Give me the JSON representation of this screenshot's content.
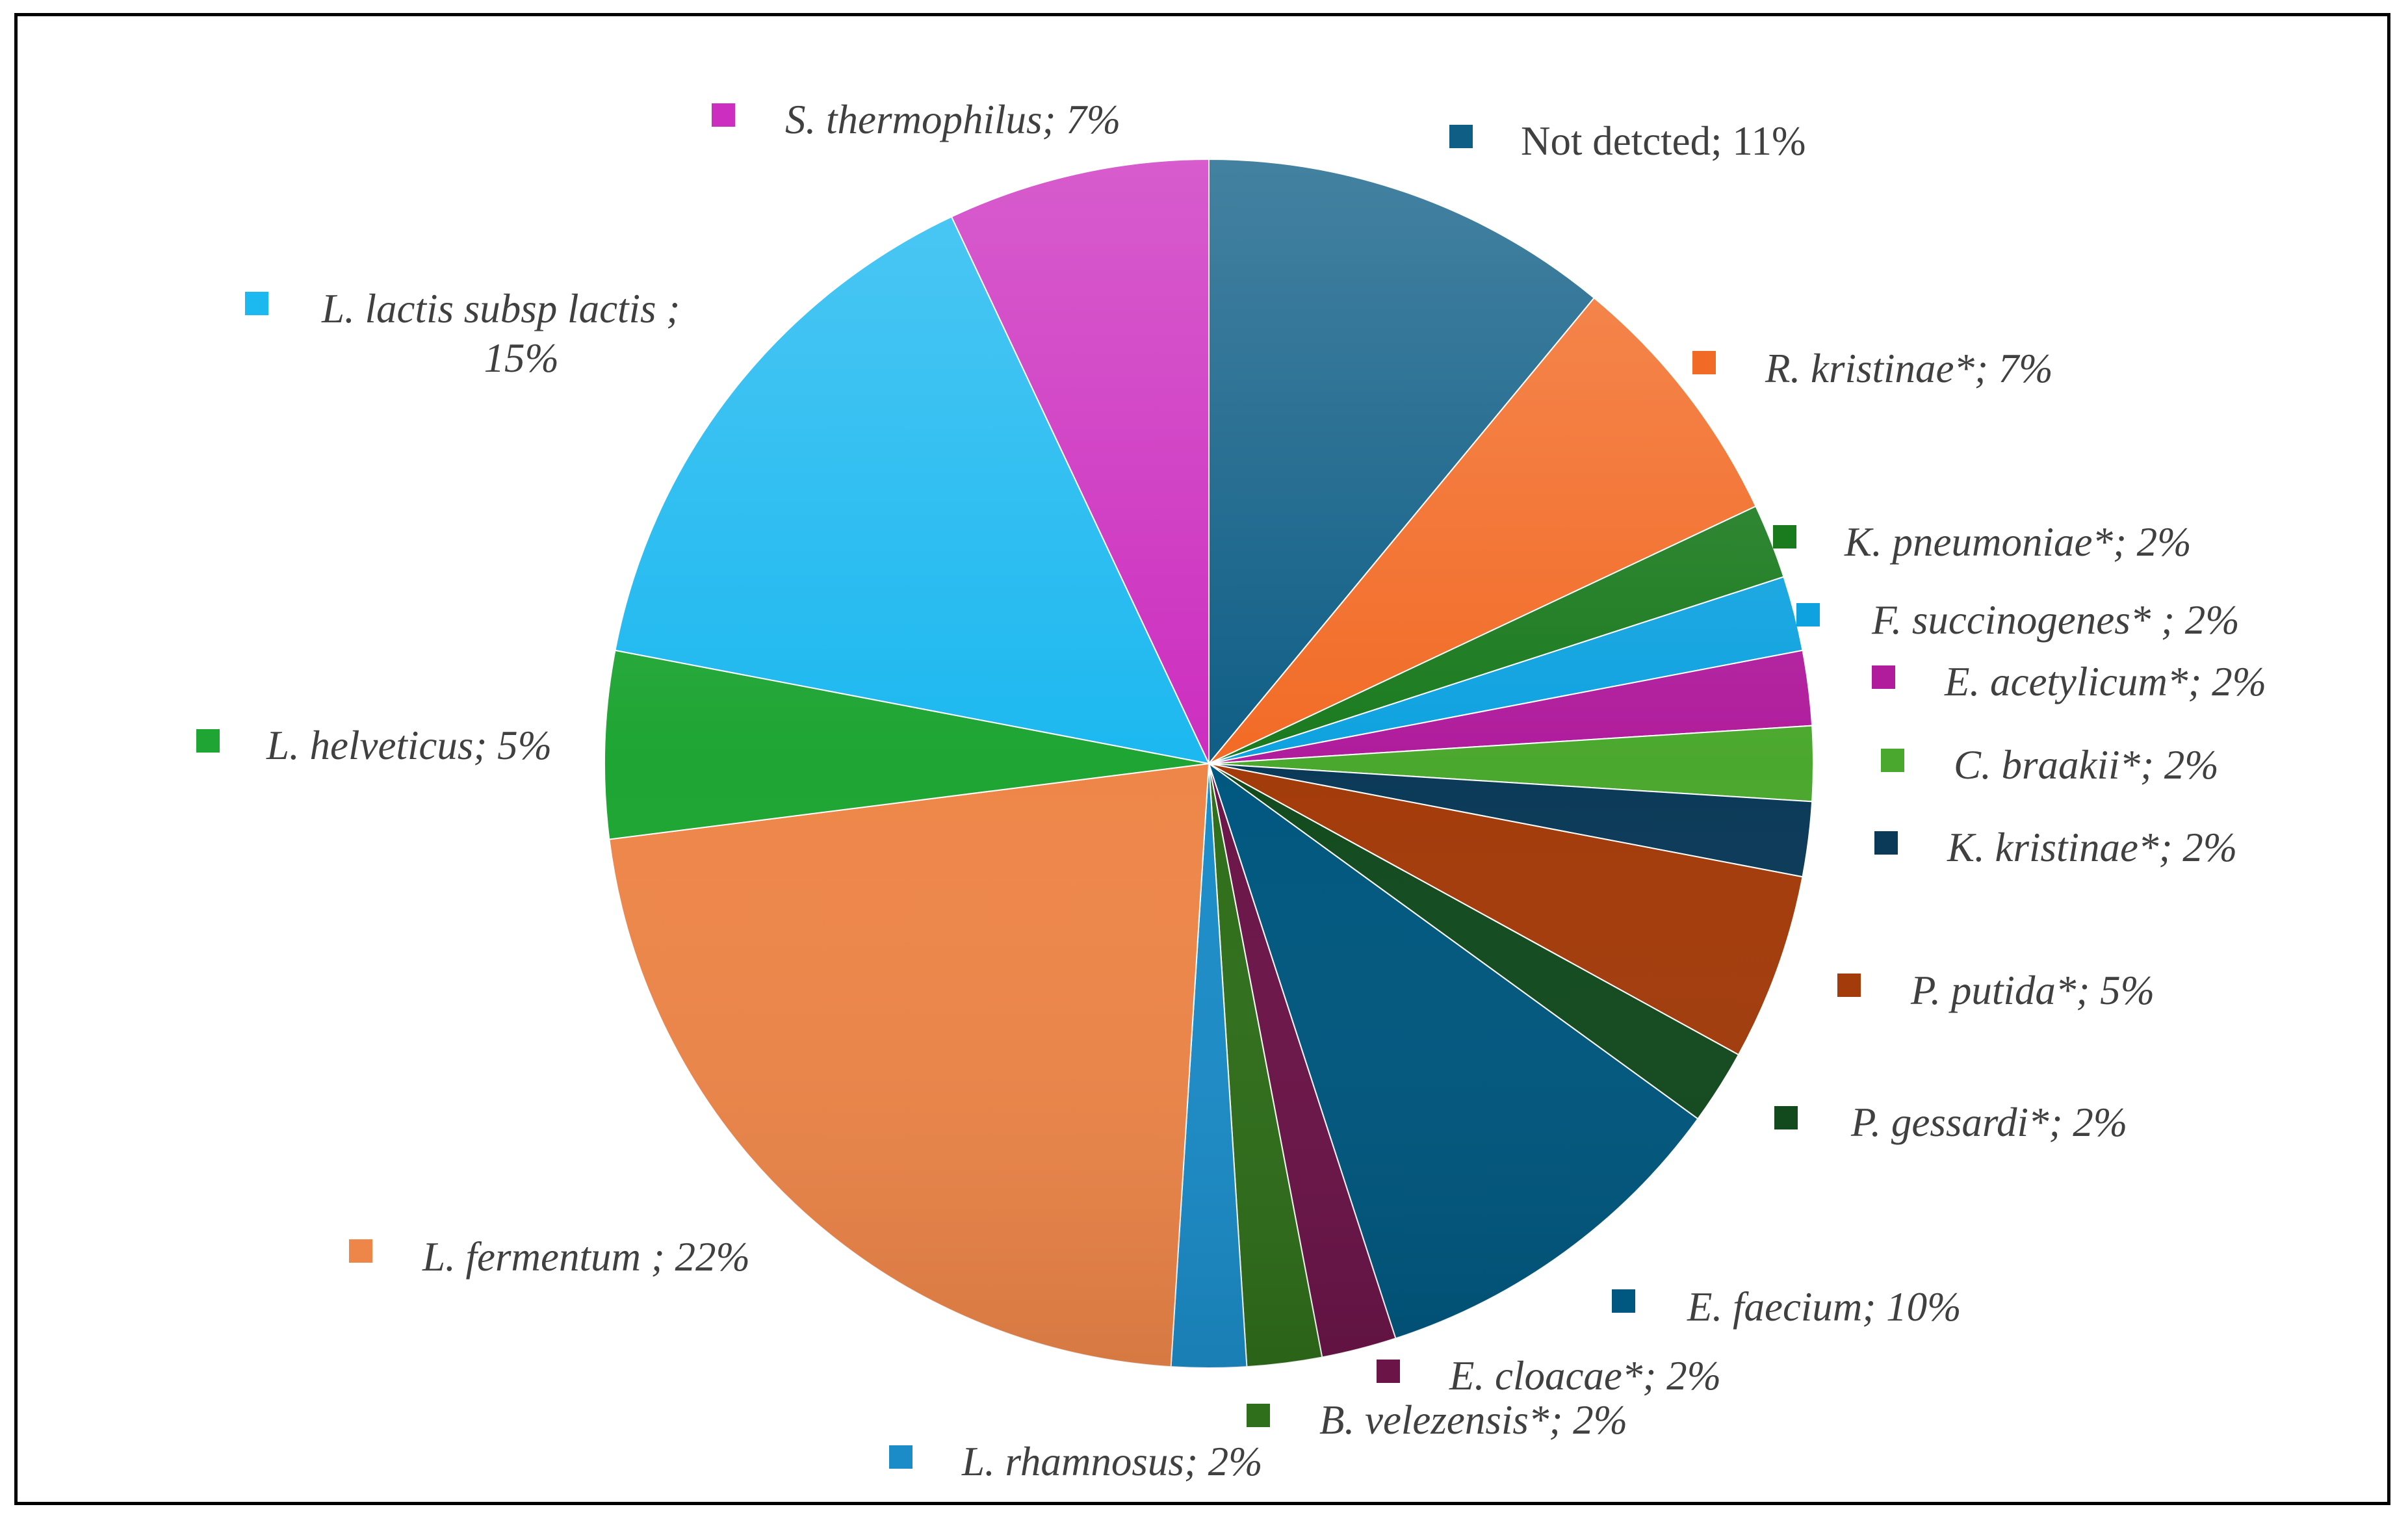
{
  "chart_data": {
    "type": "pie",
    "title": "",
    "series": [
      {
        "values": [
          11,
          7,
          2,
          2,
          2,
          2,
          2,
          5,
          2,
          10,
          2,
          2,
          2,
          22,
          5,
          15,
          7
        ],
        "categories": [
          "Not detcted",
          "R. kristinae*",
          "K. pneumoniae*",
          "F. succinogenes* ",
          "E. acetylicum*",
          "C. braakii*",
          "K. kristinae*",
          "P. putida*",
          "P. gessardi*",
          "E. faecium",
          "E. cloacae*",
          "B. velezensis*",
          "L. rhamnosus",
          "L. fermentum ",
          "L. helveticus",
          "L. lactis subsp lactis ",
          "S. thermophilus"
        ],
        "labels": [
          "Not detcted; 11%",
          "R. kristinae*; 7%",
          "K. pneumoniae*; 2%",
          "F. succinogenes* ; 2%",
          "E. acetylicum*; 2%",
          "C. braakii*; 2%",
          "K. kristinae*; 2%",
          "P. putida*; 5%",
          "P. gessardi*; 2%",
          "E. faecium; 10%",
          "E. cloacae*; 2%",
          "B. velezensis*; 2%",
          "L. rhamnosus; 2%",
          "L. fermentum ; 22%",
          "L. helveticus; 5%",
          "L. lactis subsp lactis ;",
          "S. thermophilus; 7%"
        ],
        "label_continuation": {
          "15": "15%"
        },
        "italic": [
          false,
          true,
          true,
          true,
          true,
          true,
          true,
          true,
          true,
          true,
          true,
          true,
          true,
          true,
          true,
          true,
          true
        ],
        "colors": [
          "#0F5E86",
          "#F26B26",
          "#1A7A1E",
          "#0EA2E0",
          "#B01C9C",
          "#4BA82E",
          "#0B3A58",
          "#A33B0A",
          "#124A1E",
          "#00577F",
          "#6B1448",
          "#2F6E1A",
          "#1B8CC8",
          "#EE8649",
          "#1EA533",
          "#1CB8F0",
          "#CC2EBF"
        ]
      }
    ],
    "legend": "none",
    "data_labels": "outside-with-color-marker"
  }
}
